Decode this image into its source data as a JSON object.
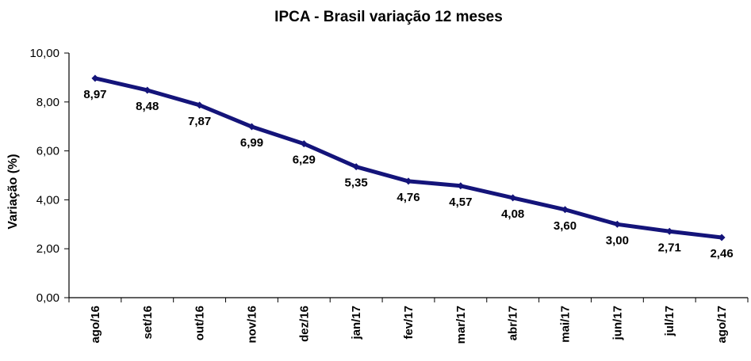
{
  "chart_data": {
    "type": "line",
    "title": "IPCA - Brasil variação 12 meses",
    "xlabel": "",
    "ylabel": "Variação (%)",
    "categories": [
      "ago/16",
      "set/16",
      "out/16",
      "nov/16",
      "dez/16",
      "jan/17",
      "fev/17",
      "mar/17",
      "abr/17",
      "mai/17",
      "jun/17",
      "jul/17",
      "ago/17"
    ],
    "series": [
      {
        "values": [
          8.97,
          8.48,
          7.87,
          6.99,
          6.29,
          5.35,
          4.76,
          4.57,
          4.08,
          3.6,
          3.0,
          2.71,
          2.46
        ],
        "labels": [
          "8,97",
          "8,48",
          "7,87",
          "6,99",
          "6,29",
          "5,35",
          "4,76",
          "4,57",
          "4,08",
          "3,60",
          "3,00",
          "2,71",
          "2,46"
        ],
        "color": "#14147a"
      }
    ],
    "yticks": [
      "0,00",
      "2,00",
      "4,00",
      "6,00",
      "8,00",
      "10,00"
    ],
    "ylim": [
      0,
      10
    ],
    "grid": false,
    "legend": "none"
  }
}
